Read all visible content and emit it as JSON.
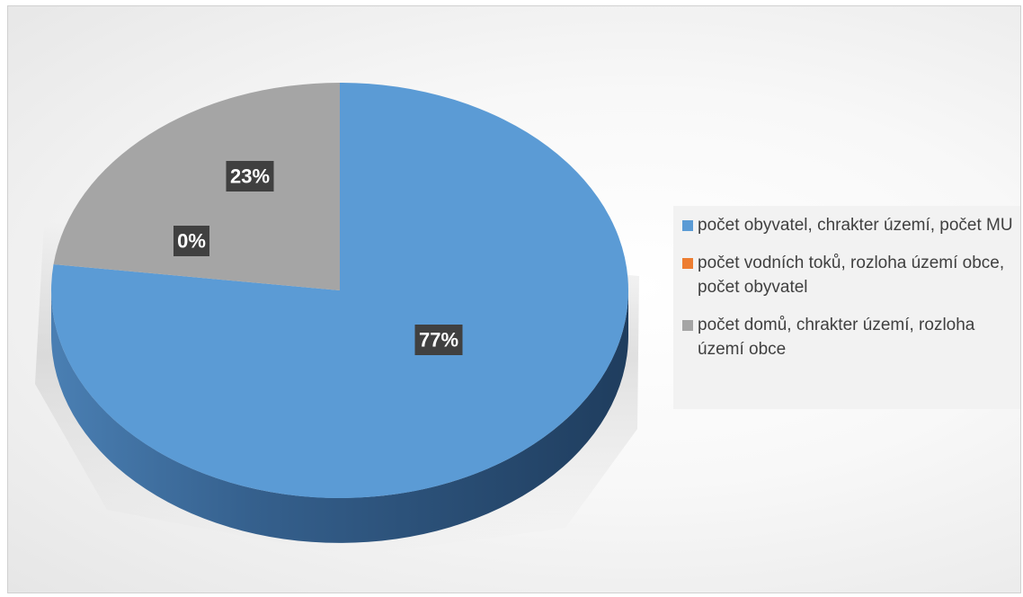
{
  "chart_data": {
    "type": "pie",
    "title": "",
    "is_3d": true,
    "slices": [
      {
        "label": "počet obyvatel, chrakter území, počet MU",
        "value": 77,
        "data_label": "77%",
        "color": "#5b9bd5"
      },
      {
        "label": "počet vodních toků, rozloha území obce, počet obyvatel",
        "value": 0,
        "data_label": "0%",
        "color": "#ed7d31"
      },
      {
        "label": "počet domů, chrakter území, rozloha území obce",
        "value": 23,
        "data_label": "23%",
        "color": "#a5a5a5"
      }
    ],
    "legend_position": "right"
  },
  "legend": {
    "items": [
      {
        "label": "počet obyvatel, chrakter území, počet MU",
        "color": "#5b9bd5"
      },
      {
        "label": "počet vodních toků, rozloha území obce, počet obyvatel",
        "color": "#ed7d31"
      },
      {
        "label": "počet domů, chrakter území, rozloha území obce",
        "color": "#a5a5a5"
      }
    ]
  }
}
